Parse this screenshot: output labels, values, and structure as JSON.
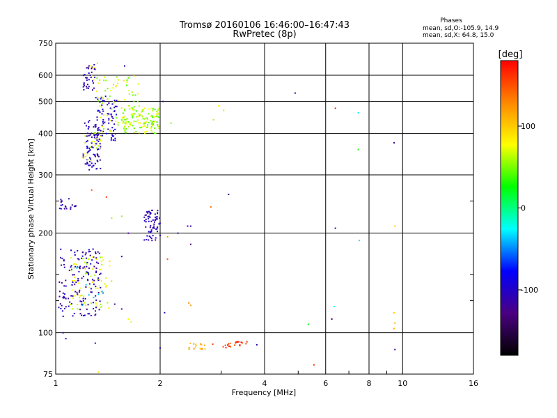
{
  "chart_data": {
    "type": "scatter",
    "title": "Tromsø 20160106 16:46:00–16:47:43",
    "subtitle": "RwPretec (8p)",
    "xlabel": "Frequency [MHz]",
    "ylabel": "Stationary phase Virtual Height [km]",
    "x_scale": "log",
    "y_scale": "log",
    "xlim": [
      1,
      16
    ],
    "ylim": [
      75,
      750
    ],
    "x_ticks": [
      1,
      2,
      4,
      6,
      8,
      10,
      16
    ],
    "x_minor_ticks": [
      3,
      5,
      7,
      9
    ],
    "y_ticks": [
      75,
      100,
      200,
      300,
      400,
      500,
      600,
      750
    ],
    "y_minor_ticks": [
      125,
      150,
      250
    ],
    "grid": true,
    "phases": {
      "heading": "Phases",
      "line_o": "mean, sd,O:-105.9, 14.9",
      "line_x": "mean, sd,X:  64.8, 15.0"
    },
    "colorbar": {
      "unit": "[deg]",
      "range": [
        -180,
        180
      ],
      "ticks": [
        100,
        0,
        -100
      ],
      "stops": [
        "#000000",
        "#4b0082",
        "#0000ff",
        "#00ffff",
        "#00ff00",
        "#ffff00",
        "#ff8800",
        "#ff0000"
      ]
    },
    "clusters": [
      {
        "fmin": 1.2,
        "fmax": 1.35,
        "hmin": 310,
        "hmax": 440,
        "n": 90,
        "p": [
          -120,
          -90
        ]
      },
      {
        "fmin": 1.2,
        "fmax": 1.35,
        "hmin": 330,
        "hmax": 410,
        "n": 25,
        "p": [
          50,
          90
        ]
      },
      {
        "fmin": 1.2,
        "fmax": 1.3,
        "hmin": 540,
        "hmax": 650,
        "n": 35,
        "p": [
          -120,
          -95
        ]
      },
      {
        "fmin": 1.25,
        "fmax": 1.35,
        "hmin": 560,
        "hmax": 660,
        "n": 8,
        "p": [
          70,
          100
        ]
      },
      {
        "fmin": 1.3,
        "fmax": 1.5,
        "hmin": 380,
        "hmax": 520,
        "n": 70,
        "p": [
          -115,
          -85
        ]
      },
      {
        "fmin": 1.3,
        "fmax": 1.6,
        "hmin": 400,
        "hmax": 620,
        "n": 50,
        "p": [
          45,
          95
        ]
      },
      {
        "fmin": 1.55,
        "fmax": 2.0,
        "hmin": 400,
        "hmax": 480,
        "n": 130,
        "p": [
          35,
          85
        ]
      },
      {
        "fmin": 1.6,
        "fmax": 1.75,
        "hmin": 480,
        "hmax": 610,
        "n": 20,
        "p": [
          40,
          90
        ]
      },
      {
        "fmin": 1.8,
        "fmax": 2.0,
        "hmin": 190,
        "hmax": 235,
        "n": 70,
        "p": [
          -120,
          -95
        ]
      },
      {
        "fmin": 1.02,
        "fmax": 1.15,
        "hmin": 235,
        "hmax": 255,
        "n": 20,
        "p": [
          -120,
          -100
        ]
      },
      {
        "fmin": 1.02,
        "fmax": 1.35,
        "hmin": 112,
        "hmax": 180,
        "n": 150,
        "p": [
          -125,
          -90
        ]
      },
      {
        "fmin": 1.1,
        "fmax": 1.45,
        "hmin": 118,
        "hmax": 170,
        "n": 70,
        "p": [
          50,
          95
        ]
      },
      {
        "fmin": 1.1,
        "fmax": 1.4,
        "hmin": 120,
        "hmax": 160,
        "n": 10,
        "p": [
          -60,
          -20
        ]
      },
      {
        "fmin": 2.4,
        "fmax": 2.7,
        "hmin": 89,
        "hmax": 93,
        "n": 18,
        "p": [
          90,
          130
        ]
      },
      {
        "fmin": 2.8,
        "fmax": 3.3,
        "hmin": 90,
        "hmax": 93,
        "n": 10,
        "p": [
          140,
          175
        ]
      },
      {
        "fmin": 3.3,
        "fmax": 3.6,
        "hmin": 91,
        "hmax": 94,
        "n": 12,
        "p": [
          150,
          178
        ]
      }
    ],
    "points": [
      {
        "x": 1.07,
        "y": 96,
        "p": -110
      },
      {
        "x": 1.05,
        "y": 100,
        "p": -115
      },
      {
        "x": 1.3,
        "y": 93,
        "p": -110
      },
      {
        "x": 1.33,
        "y": 76,
        "p": 90
      },
      {
        "x": 1.27,
        "y": 270,
        "p": 150
      },
      {
        "x": 1.4,
        "y": 257,
        "p": 160
      },
      {
        "x": 1.45,
        "y": 222,
        "p": 55
      },
      {
        "x": 1.55,
        "y": 225,
        "p": 50
      },
      {
        "x": 1.62,
        "y": 200,
        "p": -120
      },
      {
        "x": 1.55,
        "y": 170,
        "p": -110
      },
      {
        "x": 1.48,
        "y": 122,
        "p": -120
      },
      {
        "x": 1.55,
        "y": 118,
        "p": -110
      },
      {
        "x": 1.65,
        "y": 108,
        "p": 70
      },
      {
        "x": 1.62,
        "y": 110,
        "p": 80
      },
      {
        "x": 1.58,
        "y": 640,
        "p": -110
      },
      {
        "x": 2.0,
        "y": 90,
        "p": -100
      },
      {
        "x": 2.06,
        "y": 115,
        "p": -110
      },
      {
        "x": 2.04,
        "y": 500,
        "p": -120
      },
      {
        "x": 2.1,
        "y": 195,
        "p": 120
      },
      {
        "x": 2.1,
        "y": 167,
        "p": 150
      },
      {
        "x": 2.15,
        "y": 430,
        "p": 50
      },
      {
        "x": 2.25,
        "y": 200,
        "p": -120
      },
      {
        "x": 2.4,
        "y": 210,
        "p": -110
      },
      {
        "x": 2.45,
        "y": 210,
        "p": -115
      },
      {
        "x": 2.42,
        "y": 123,
        "p": 130
      },
      {
        "x": 2.45,
        "y": 121,
        "p": 120
      },
      {
        "x": 2.45,
        "y": 185,
        "p": -130
      },
      {
        "x": 2.8,
        "y": 240,
        "p": 140
      },
      {
        "x": 2.85,
        "y": 440,
        "p": 60
      },
      {
        "x": 2.95,
        "y": 485,
        "p": 80
      },
      {
        "x": 3.05,
        "y": 470,
        "p": 60
      },
      {
        "x": 3.15,
        "y": 262,
        "p": -120
      },
      {
        "x": 3.8,
        "y": 92,
        "p": -110
      },
      {
        "x": 4.9,
        "y": 530,
        "p": -110
      },
      {
        "x": 5.35,
        "y": 106,
        "p": 20
      },
      {
        "x": 5.55,
        "y": 80,
        "p": 160
      },
      {
        "x": 6.25,
        "y": 110,
        "p": -130
      },
      {
        "x": 6.35,
        "y": 120,
        "p": -20
      },
      {
        "x": 6.4,
        "y": 477,
        "p": 170
      },
      {
        "x": 6.4,
        "y": 207,
        "p": -100
      },
      {
        "x": 7.45,
        "y": 462,
        "p": -30
      },
      {
        "x": 7.45,
        "y": 358,
        "p": 30
      },
      {
        "x": 7.5,
        "y": 190,
        "p": -30
      },
      {
        "x": 9.45,
        "y": 375,
        "p": -120
      },
      {
        "x": 9.5,
        "y": 210,
        "p": 100
      },
      {
        "x": 9.45,
        "y": 115,
        "p": 100
      },
      {
        "x": 9.5,
        "y": 107,
        "p": 110
      },
      {
        "x": 9.45,
        "y": 103,
        "p": 110
      },
      {
        "x": 9.5,
        "y": 89,
        "p": -120
      }
    ]
  }
}
